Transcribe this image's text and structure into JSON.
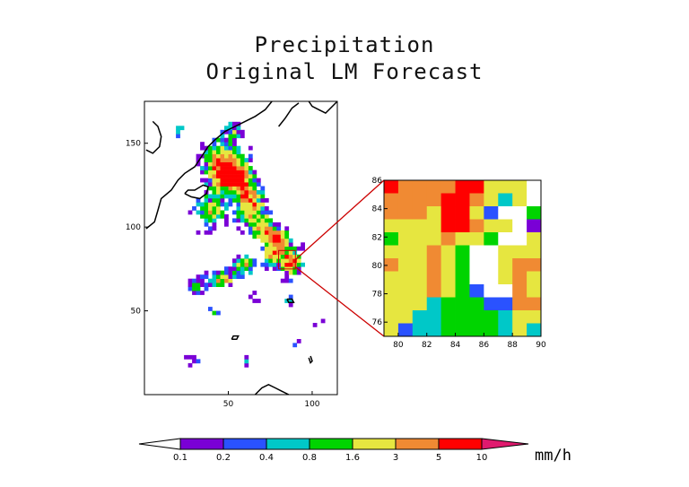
{
  "header": {
    "title_line1": "Precipitation",
    "title_line2": "Original LM Forecast"
  },
  "chart_data": [
    {
      "type": "heatmap",
      "panel": "full-domain",
      "xlim": [
        0,
        115
      ],
      "ylim": [
        0,
        175
      ],
      "x_ticks": [
        "50",
        "100"
      ],
      "y_ticks": [
        "50",
        "100",
        "150"
      ],
      "zoom_box": {
        "x": [
          80,
          90
        ],
        "y": [
          75,
          86
        ]
      }
    },
    {
      "type": "heatmap",
      "panel": "zoom",
      "xlim": [
        79,
        90
      ],
      "ylim": [
        75,
        86
      ],
      "x_ticks": [
        "80",
        "82",
        "84",
        "86",
        "88",
        "90"
      ],
      "y_ticks": [
        "76",
        "78",
        "80",
        "82",
        "84",
        "86"
      ],
      "rows_top_to_bottom": [
        [
          7,
          6,
          6,
          6,
          6,
          7,
          7,
          5,
          5,
          5,
          0
        ],
        [
          6,
          6,
          6,
          6,
          8,
          8,
          6,
          5,
          3,
          5,
          0
        ],
        [
          6,
          6,
          6,
          5,
          8,
          8,
          5,
          2,
          0,
          0,
          4
        ],
        [
          5,
          5,
          5,
          5,
          8,
          8,
          6,
          5,
          5,
          0,
          1
        ],
        [
          4,
          5,
          5,
          5,
          6,
          5,
          5,
          4,
          0,
          0,
          5
        ],
        [
          5,
          5,
          5,
          6,
          5,
          4,
          0,
          0,
          5,
          5,
          5
        ],
        [
          6,
          5,
          5,
          6,
          5,
          4,
          0,
          0,
          5,
          6,
          6
        ],
        [
          5,
          5,
          5,
          6,
          5,
          4,
          0,
          0,
          5,
          6,
          5
        ],
        [
          5,
          5,
          5,
          6,
          5,
          4,
          2,
          0,
          0,
          6,
          5
        ],
        [
          5,
          5,
          5,
          3,
          4,
          4,
          4,
          2,
          2,
          6,
          6
        ],
        [
          5,
          5,
          3,
          3,
          4,
          4,
          4,
          4,
          3,
          5,
          5
        ],
        [
          5,
          2,
          3,
          3,
          4,
          4,
          4,
          4,
          3,
          5,
          3
        ]
      ]
    }
  ],
  "colorbar": {
    "labels": [
      "0.1",
      "0.2",
      "0.4",
      "0.8",
      "1.6",
      "3",
      "5",
      "10"
    ],
    "colors": [
      "#7a00d6",
      "#2a52ff",
      "#00c8c8",
      "#00d400",
      "#e6e640",
      "#f08a33",
      "#ff0000",
      "#e01a6e"
    ],
    "unit": "mm/h"
  },
  "palette": {
    "0": "#ffffff",
    "1": "#7a00d6",
    "2": "#2a52ff",
    "3": "#00c8c8",
    "4": "#00d400",
    "5": "#e6e640",
    "6": "#f08a33",
    "7": "#ff0000",
    "8": "#ff0000"
  },
  "connector_color": "#cc0000"
}
